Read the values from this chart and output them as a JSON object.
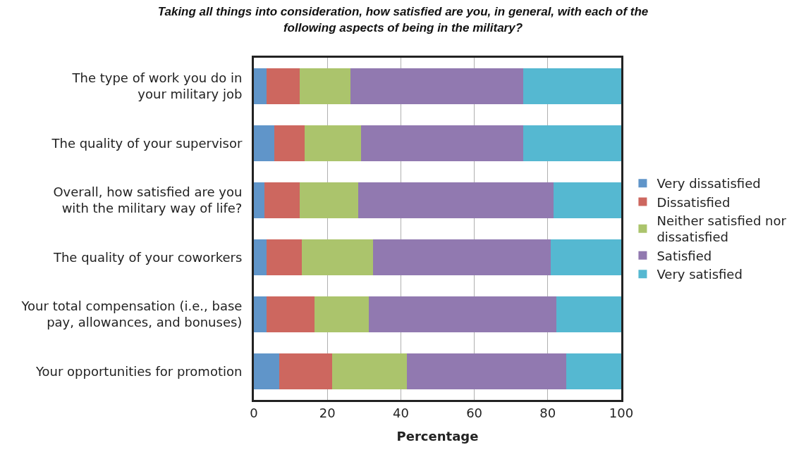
{
  "chart_data": {
    "type": "bar",
    "orientation": "horizontal",
    "stacked": true,
    "title": "Taking all things into consideration, how satisfied are you, in general, with each of the\nfollowing aspects of being in the military?",
    "xlabel": "Percentage",
    "categories": [
      "The type of work you do in\nyour military job",
      "The quality of your supervisor",
      "Overall, how satisfied are you\nwith the military way of life?",
      "The quality of your coworkers",
      "Your total compensation (i.e., base\npay, allowances, and bonuses)",
      "Your opportunities for promotion"
    ],
    "series": [
      {
        "name": "Very dissatisfied",
        "color": "#6095c9",
        "values": [
          3.5,
          5.6,
          2.8,
          3.5,
          3.5,
          7.0
        ]
      },
      {
        "name": "Dissatisfied",
        "color": "#cd675f",
        "values": [
          8.9,
          8.2,
          9.6,
          9.6,
          13.1,
          14.4
        ]
      },
      {
        "name": "Neither satisfied nor\ndissatisfied",
        "color": "#abc46c",
        "values": [
          13.9,
          15.3,
          16.1,
          19.4,
          14.6,
          20.2
        ]
      },
      {
        "name": "Satisfied",
        "color": "#9179b0",
        "values": [
          47.0,
          44.2,
          53.1,
          48.4,
          51.1,
          43.4
        ]
      },
      {
        "name": "Very satisfied",
        "color": "#55b8d1",
        "values": [
          26.7,
          26.7,
          18.4,
          19.1,
          17.7,
          15.0
        ]
      }
    ],
    "xlim": [
      0,
      100
    ],
    "xticks": [
      0,
      20,
      40,
      60,
      80,
      100
    ],
    "grid": "x",
    "legend": "right"
  }
}
